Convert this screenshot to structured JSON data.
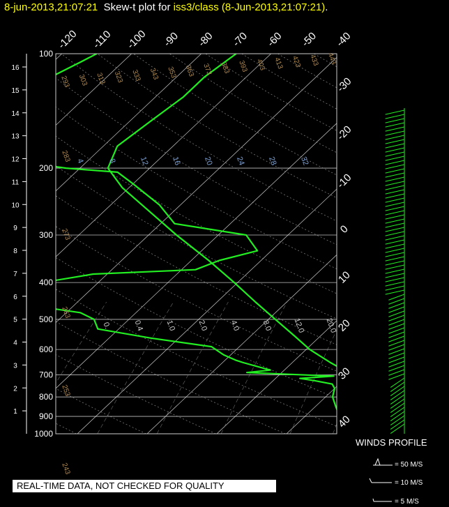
{
  "header": {
    "date": "8-jun-2013,21:07:21",
    "plot_label": "Skew-t plot for",
    "dataset": "iss3/class (8-Jun-2013,21:07:21)",
    "trailing": "."
  },
  "notice": "REAL-TIME DATA, NOT CHECKED FOR QUALITY",
  "winds": {
    "title": "WINDS PROFILE",
    "legend": [
      "= 50 M/S",
      "= 10 M/S",
      "= 5 M/S"
    ]
  },
  "colors": {
    "profile": "#22ee22",
    "grid": "#ffffff",
    "adiabat": "#b08a50",
    "mixing": "#7aa0d8",
    "title_date": "#ffff00"
  },
  "chart_data": {
    "type": "line",
    "xlabel": "",
    "ylabel": "",
    "pressure_levels": [
      100,
      200,
      300,
      400,
      500,
      600,
      700,
      800,
      900,
      1000
    ],
    "height_km": [
      16,
      15,
      14,
      13,
      12,
      11,
      10,
      9,
      8,
      7,
      6,
      5,
      4,
      3,
      2,
      1
    ],
    "temperature_ticks_top": [
      -120,
      -110,
      -100,
      -90,
      -80,
      -70,
      -60,
      -50,
      -40
    ],
    "temperature_ticks_right": [
      -30,
      -20,
      -10,
      0,
      10,
      20,
      30,
      40
    ],
    "dry_adiabat_labels": [
      "293",
      "303",
      "313",
      "323",
      "333",
      "343",
      "353",
      "363",
      "373",
      "383",
      "393",
      "403",
      "413",
      "423",
      "433",
      "443"
    ],
    "lower_adiabat_labels": [
      "283",
      "273",
      "263",
      "253",
      "243"
    ],
    "mixing_ratio_labels": [
      "4",
      "8",
      "12",
      "16",
      "20",
      "24",
      "28",
      "32"
    ],
    "mixing_ratio_lower_labels": [
      "0.",
      "0.4",
      "1.0",
      "2.0",
      "4.0",
      "8.0",
      "12.0",
      "20.0"
    ],
    "series": [
      {
        "name": "temperature",
        "points": [
          [
            1000,
            27
          ],
          [
            975,
            25
          ],
          [
            950,
            22.5
          ],
          [
            925,
            20.5
          ],
          [
            900,
            18.5
          ],
          [
            875,
            17
          ],
          [
            850,
            16
          ],
          [
            825,
            15.5
          ],
          [
            800,
            15
          ],
          [
            775,
            14
          ],
          [
            750,
            13
          ],
          [
            725,
            12
          ],
          [
            700,
            10.5
          ],
          [
            650,
            5.5
          ],
          [
            600,
            0.5
          ],
          [
            550,
            -4
          ],
          [
            500,
            -9
          ],
          [
            450,
            -14.5
          ],
          [
            400,
            -20.5
          ],
          [
            350,
            -27.5
          ],
          [
            300,
            -36
          ],
          [
            250,
            -45.5
          ],
          [
            225,
            -51
          ],
          [
            200,
            -56
          ],
          [
            175,
            -58
          ],
          [
            150,
            -57
          ],
          [
            130,
            -56
          ],
          [
            115,
            -56
          ],
          [
            100,
            -55
          ]
        ]
      },
      {
        "name": "dewpoint",
        "points": [
          [
            1000,
            18
          ],
          [
            975,
            17
          ],
          [
            950,
            16
          ],
          [
            925,
            15.5
          ],
          [
            900,
            15
          ],
          [
            875,
            14
          ],
          [
            850,
            13
          ],
          [
            800,
            11
          ],
          [
            760,
            10
          ],
          [
            740,
            9
          ],
          [
            725,
            6
          ],
          [
            715,
            3.5
          ],
          [
            705,
            8
          ],
          [
            690,
            -5
          ],
          [
            680,
            -2
          ],
          [
            650,
            -7
          ],
          [
            640,
            -8.5
          ],
          [
            620,
            -11
          ],
          [
            590,
            -14
          ],
          [
            560,
            -24
          ],
          [
            530,
            -33
          ],
          [
            500,
            -35
          ],
          [
            480,
            -38
          ],
          [
            460,
            -46
          ],
          [
            440,
            -53
          ],
          [
            425,
            -55
          ],
          [
            410,
            -54
          ],
          [
            400,
            -48
          ],
          [
            380,
            -42
          ],
          [
            370,
            -28
          ],
          [
            350,
            -26
          ],
          [
            330,
            -22
          ],
          [
            300,
            -26
          ],
          [
            280,
            -38
          ],
          [
            250,
            -43
          ],
          [
            220,
            -50
          ],
          [
            205,
            -54
          ],
          [
            200,
            -62
          ],
          [
            190,
            -72
          ],
          [
            170,
            -75
          ],
          [
            150,
            -76
          ],
          [
            130,
            -79
          ],
          [
            115,
            -78
          ],
          [
            105,
            -76
          ],
          [
            100,
            -75
          ]
        ]
      }
    ]
  }
}
